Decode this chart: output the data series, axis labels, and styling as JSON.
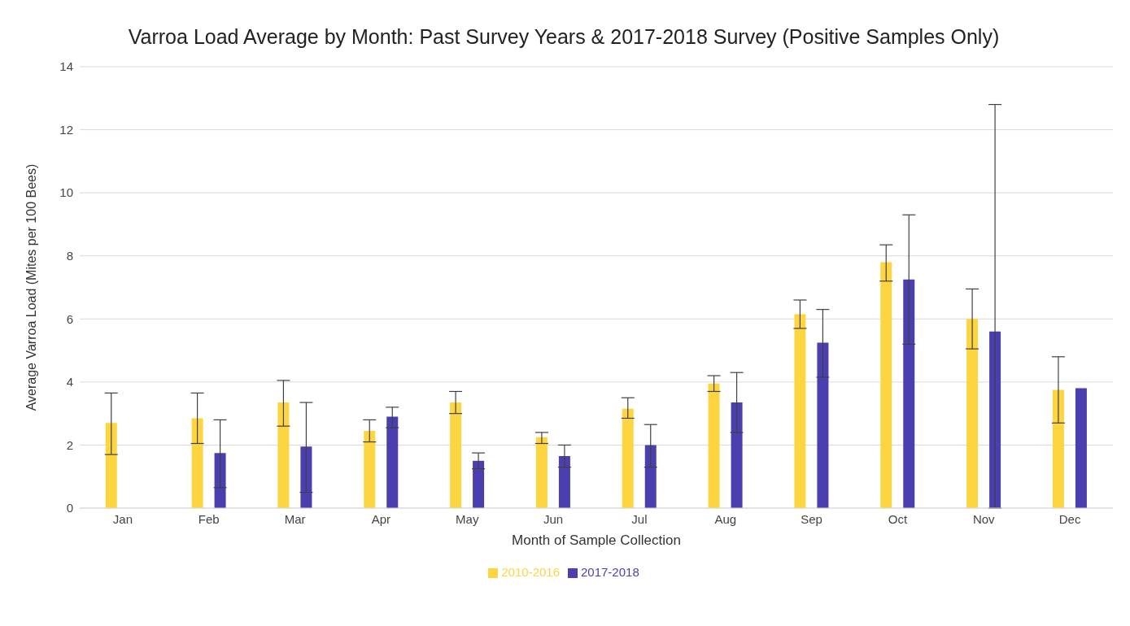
{
  "chart_data": {
    "type": "bar",
    "title": "Varroa Load Average by Month: Past Survey Years & 2017-2018 Survey (Positive Samples Only)",
    "xlabel": "Month of Sample Collection",
    "ylabel": "Average Varroa Load (Mites per 100 Bees)",
    "categories": [
      "Jan",
      "Feb",
      "Mar",
      "Apr",
      "May",
      "Jun",
      "Jul",
      "Aug",
      "Sep",
      "Oct",
      "Nov",
      "Dec"
    ],
    "series": [
      {
        "name": "2010-2016",
        "color": "#fdd541",
        "values": [
          2.7,
          2.85,
          3.35,
          2.45,
          3.35,
          2.25,
          3.15,
          3.95,
          6.15,
          7.8,
          6.0,
          3.75
        ],
        "errors": [
          [
            1.7,
            3.65
          ],
          [
            2.05,
            3.65
          ],
          [
            2.6,
            4.05
          ],
          [
            2.1,
            2.8
          ],
          [
            3.0,
            3.7
          ],
          [
            2.05,
            2.4
          ],
          [
            2.85,
            3.5
          ],
          [
            3.7,
            4.2
          ],
          [
            5.7,
            6.6
          ],
          [
            7.2,
            8.35
          ],
          [
            5.05,
            6.95
          ],
          [
            2.7,
            4.8
          ]
        ]
      },
      {
        "name": "2017-2018",
        "color": "#4b3fb0",
        "values": [
          null,
          1.75,
          1.95,
          2.9,
          1.5,
          1.65,
          2.0,
          3.35,
          5.25,
          7.25,
          5.6,
          3.8
        ],
        "errors": [
          null,
          [
            0.65,
            2.8
          ],
          [
            0.5,
            3.35
          ],
          [
            2.55,
            3.2
          ],
          [
            1.25,
            1.75
          ],
          [
            1.3,
            2.0
          ],
          [
            1.3,
            2.65
          ],
          [
            2.4,
            4.3
          ],
          [
            4.15,
            6.3
          ],
          [
            5.2,
            9.3
          ],
          [
            0.0,
            12.8
          ],
          null
        ]
      }
    ],
    "ylim": [
      0,
      14
    ],
    "yticks": [
      0,
      2,
      4,
      6,
      8,
      10,
      12,
      14
    ],
    "grid": "y",
    "legend": "bottom"
  }
}
